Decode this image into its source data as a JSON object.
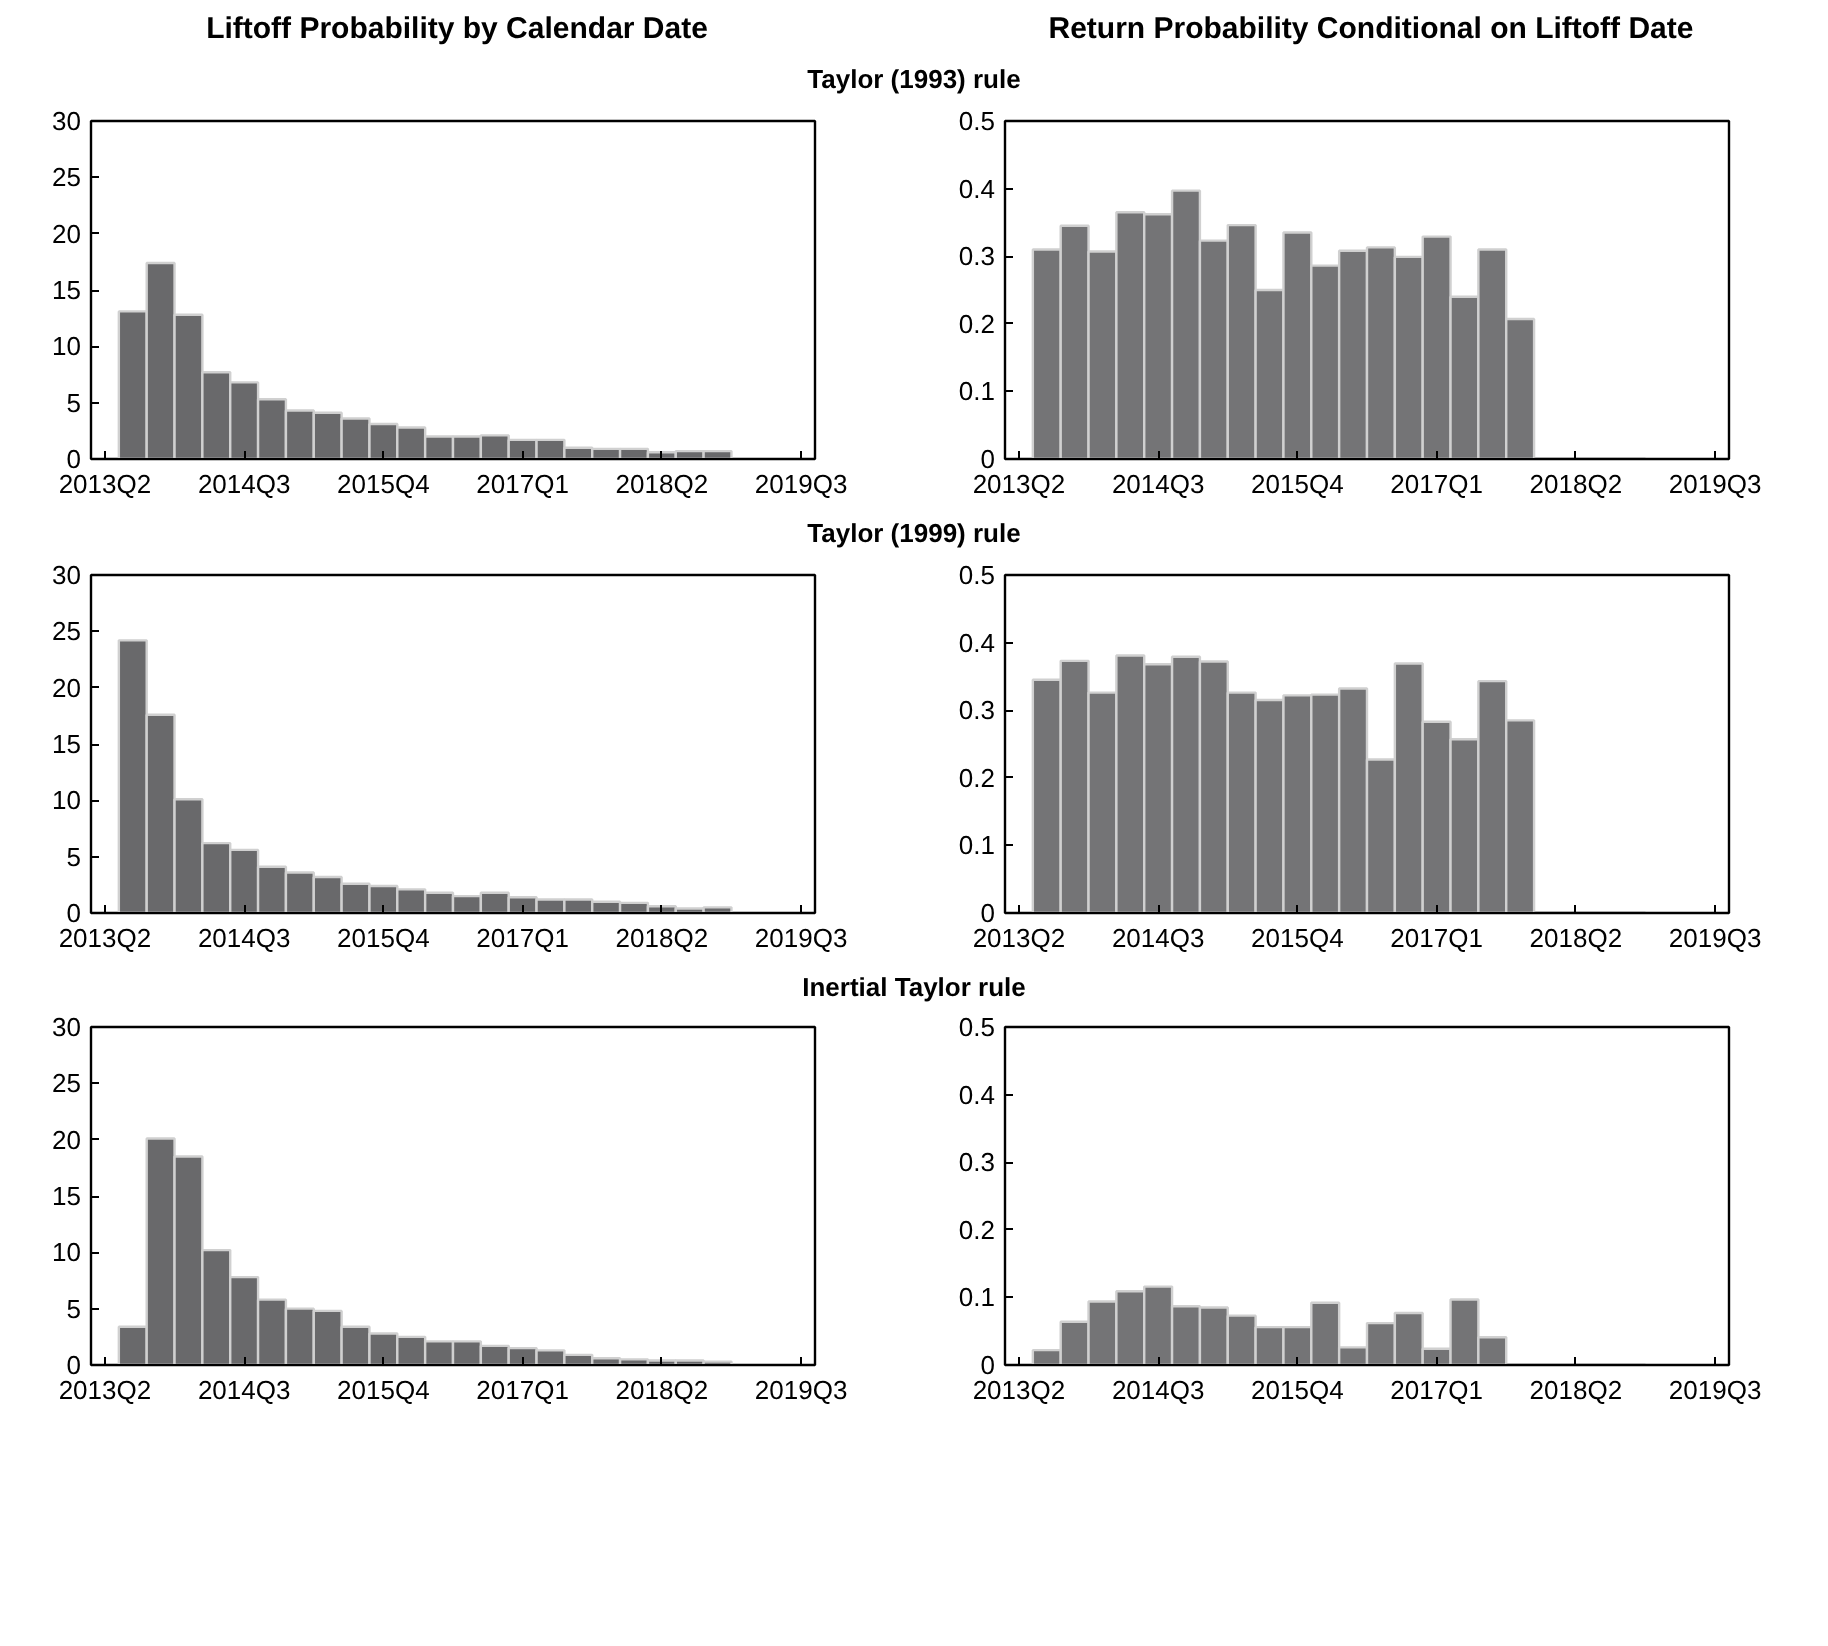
{
  "chart_data": [
    {
      "type": "bar",
      "title": "Liftoff Probability by Calendar Date",
      "subtitle": "Taylor (1993) rule",
      "color": "#69696b",
      "categories": [
        "2013Q2",
        null,
        null,
        null,
        null,
        "2014Q3",
        null,
        null,
        null,
        null,
        "2015Q4",
        null,
        null,
        null,
        null,
        "2017Q1",
        null,
        null,
        null,
        null,
        "2018Q2",
        null,
        null,
        null,
        null,
        "2019Q3"
      ],
      "values": [
        null,
        13.1,
        17.4,
        12.8,
        7.7,
        6.8,
        5.3,
        4.3,
        4.1,
        3.6,
        3.1,
        2.8,
        2.0,
        2.0,
        2.1,
        1.7,
        1.7,
        1.0,
        0.9,
        0.9,
        0.6,
        0.7,
        0.7,
        null,
        null,
        null
      ],
      "ylim": [
        0,
        30
      ],
      "yticks": [
        0,
        5,
        10,
        15,
        20,
        25,
        30
      ]
    },
    {
      "type": "bar",
      "title": "Return Probability Conditional on Liftoff Date",
      "color": "#747476",
      "categories": [
        "2013Q2",
        null,
        null,
        null,
        null,
        "2014Q3",
        null,
        null,
        null,
        null,
        "2015Q4",
        null,
        null,
        null,
        null,
        "2017Q1",
        null,
        null,
        null,
        null,
        "2018Q2",
        null,
        null,
        null,
        null,
        "2019Q3"
      ],
      "values": [
        null,
        0.31,
        0.345,
        0.307,
        0.365,
        0.362,
        0.397,
        0.323,
        0.346,
        0.25,
        0.335,
        0.286,
        0.308,
        0.313,
        0.299,
        0.329,
        0.24,
        0.31,
        0.207,
        0,
        0,
        0,
        0,
        null,
        null,
        null
      ],
      "ylim": [
        0,
        0.5
      ],
      "yticks": [
        0,
        0.1,
        0.2,
        0.3,
        0.4,
        0.5
      ]
    },
    {
      "type": "bar",
      "subtitle": "Taylor (1999) rule",
      "color": "#69696b",
      "categories": [
        "2013Q2",
        null,
        null,
        null,
        null,
        "2014Q3",
        null,
        null,
        null,
        null,
        "2015Q4",
        null,
        null,
        null,
        null,
        "2017Q1",
        null,
        null,
        null,
        null,
        "2018Q2",
        null,
        null,
        null,
        null,
        "2019Q3"
      ],
      "values": [
        null,
        24.2,
        17.6,
        10.1,
        6.2,
        5.6,
        4.1,
        3.6,
        3.2,
        2.6,
        2.4,
        2.1,
        1.8,
        1.5,
        1.8,
        1.4,
        1.2,
        1.2,
        1.0,
        0.9,
        0.6,
        0.4,
        0.5,
        null,
        null,
        null
      ],
      "ylim": [
        0,
        30
      ],
      "yticks": [
        0,
        5,
        10,
        15,
        20,
        25,
        30
      ]
    },
    {
      "type": "bar",
      "color": "#747476",
      "categories": [
        "2013Q2",
        null,
        null,
        null,
        null,
        "2014Q3",
        null,
        null,
        null,
        null,
        "2015Q4",
        null,
        null,
        null,
        null,
        "2017Q1",
        null,
        null,
        null,
        null,
        "2018Q2",
        null,
        null,
        null,
        null,
        "2019Q3"
      ],
      "values": [
        null,
        0.345,
        0.373,
        0.326,
        0.381,
        0.368,
        0.379,
        0.372,
        0.326,
        0.315,
        0.322,
        0.323,
        0.332,
        0.227,
        0.369,
        0.283,
        0.257,
        0.343,
        0.285,
        0,
        0,
        0,
        0,
        null,
        null,
        null
      ],
      "ylim": [
        0,
        0.5
      ],
      "yticks": [
        0,
        0.1,
        0.2,
        0.3,
        0.4,
        0.5
      ]
    },
    {
      "type": "bar",
      "subtitle": "Inertial Taylor rule",
      "color": "#69696b",
      "categories": [
        "2013Q2",
        null,
        null,
        null,
        null,
        "2014Q3",
        null,
        null,
        null,
        null,
        "2015Q4",
        null,
        null,
        null,
        null,
        "2017Q1",
        null,
        null,
        null,
        null,
        "2018Q2",
        null,
        null,
        null,
        null,
        "2019Q3"
      ],
      "values": [
        null,
        3.4,
        20.1,
        18.5,
        10.2,
        7.8,
        5.8,
        5.0,
        4.8,
        3.4,
        2.8,
        2.5,
        2.1,
        2.1,
        1.7,
        1.5,
        1.3,
        0.9,
        0.6,
        0.5,
        0.4,
        0.4,
        0.3,
        null,
        null,
        null
      ],
      "ylim": [
        0,
        30
      ],
      "yticks": [
        0,
        5,
        10,
        15,
        20,
        25,
        30
      ]
    },
    {
      "type": "bar",
      "color": "#747476",
      "categories": [
        "2013Q2",
        null,
        null,
        null,
        null,
        "2014Q3",
        null,
        null,
        null,
        null,
        "2015Q4",
        null,
        null,
        null,
        null,
        "2017Q1",
        null,
        null,
        null,
        null,
        "2018Q2",
        null,
        null,
        null,
        null,
        "2019Q3"
      ],
      "values": [
        null,
        0.022,
        0.064,
        0.094,
        0.109,
        0.116,
        0.087,
        0.085,
        0.073,
        0.056,
        0.056,
        0.092,
        0.026,
        0.062,
        0.077,
        0.024,
        0.097,
        0.041,
        0,
        0,
        0,
        0,
        0,
        null,
        null,
        null
      ],
      "ylim": [
        0,
        0.5
      ],
      "yticks": [
        0,
        0.1,
        0.2,
        0.3,
        0.4,
        0.5
      ]
    }
  ]
}
